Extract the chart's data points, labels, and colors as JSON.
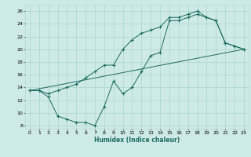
{
  "xlabel": "Humidex (Indice chaleur)",
  "bg_color": "#ceeae6",
  "grid_color": "#aed4cf",
  "line_color": "#1a6b60",
  "xlim": [
    -0.5,
    23.5
  ],
  "ylim": [
    7.5,
    27.0
  ],
  "xticks": [
    0,
    1,
    2,
    3,
    4,
    5,
    6,
    7,
    8,
    9,
    10,
    11,
    12,
    13,
    14,
    15,
    16,
    17,
    18,
    19,
    20,
    21,
    22,
    23
  ],
  "yticks": [
    8,
    10,
    12,
    14,
    16,
    18,
    20,
    22,
    24,
    26
  ],
  "line1_x": [
    0,
    1,
    2,
    3,
    4,
    5,
    6,
    7,
    8,
    9,
    10,
    11,
    12,
    13,
    14,
    15,
    16,
    17,
    18,
    19,
    20,
    21,
    22,
    23
  ],
  "line1_y": [
    13.5,
    13.5,
    13.0,
    13.5,
    14.0,
    14.5,
    15.5,
    16.5,
    17.5,
    17.5,
    20.0,
    21.5,
    22.5,
    23.0,
    23.5,
    25.0,
    25.0,
    25.5,
    26.0,
    25.0,
    24.5,
    21.0,
    20.5,
    20.0
  ],
  "line2_x": [
    0,
    1,
    2,
    3,
    4,
    5,
    6,
    7,
    8,
    9,
    10,
    11,
    12,
    13,
    14,
    15,
    16,
    17,
    18,
    19,
    20,
    21,
    22,
    23
  ],
  "line2_y": [
    13.5,
    13.5,
    12.5,
    9.5,
    9.0,
    8.5,
    8.5,
    8.0,
    11.0,
    15.0,
    13.0,
    14.0,
    16.5,
    19.0,
    19.5,
    24.5,
    24.5,
    25.0,
    25.5,
    25.0,
    24.5,
    21.0,
    20.5,
    20.0
  ],
  "line3_x": [
    0,
    23
  ],
  "line3_y": [
    13.5,
    20.0
  ]
}
